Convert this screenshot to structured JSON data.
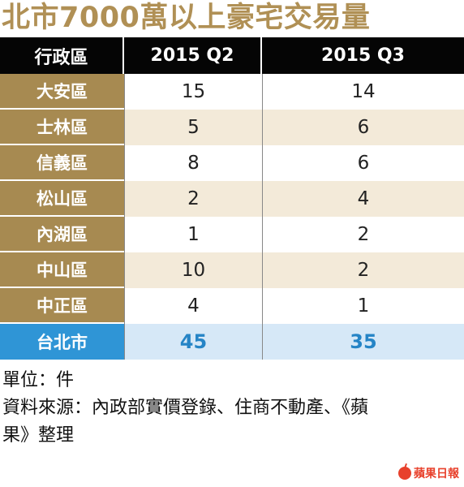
{
  "title": "北市7000萬以上豪宅交易量",
  "chart_data": {
    "type": "table",
    "columns": [
      "行政區",
      "2015 Q2",
      "2015 Q3"
    ],
    "rows": [
      {
        "district": "大安區",
        "q2": 15,
        "q3": 14
      },
      {
        "district": "士林區",
        "q2": 5,
        "q3": 6
      },
      {
        "district": "信義區",
        "q2": 8,
        "q3": 6
      },
      {
        "district": "松山區",
        "q2": 2,
        "q3": 4
      },
      {
        "district": "內湖區",
        "q2": 1,
        "q3": 2
      },
      {
        "district": "中山區",
        "q2": 10,
        "q3": 2
      },
      {
        "district": "中正區",
        "q2": 4,
        "q3": 1
      }
    ],
    "total": {
      "district": "台北市",
      "q2": 45,
      "q3": 35
    }
  },
  "notes": {
    "unit": "單位：件",
    "source_line1": "資料來源：內政部實價登錄、住商不動產、《蘋",
    "source_line2": "果》整理"
  },
  "logo": {
    "text": "蘋果日報",
    "icon": "apple-icon"
  },
  "colors": {
    "title": "#b09055",
    "header_bg": "#050505",
    "district_bg": "#a78a51",
    "stripe_bg": "#f3ead9",
    "total_label_bg": "#2f95d6",
    "total_value_bg": "#d6e8f7",
    "total_value_text": "#2584c6",
    "logo": "#e8412c"
  }
}
